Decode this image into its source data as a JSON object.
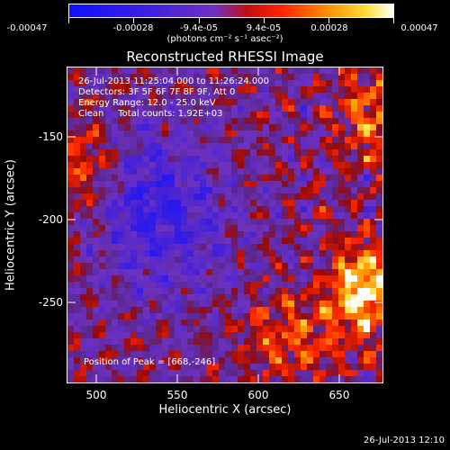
{
  "colorbar": {
    "tick_labels": [
      "-0.00047",
      "-0.00028",
      "-9.4e-05",
      "9.4e-05",
      "0.00028",
      "0.00047"
    ],
    "unit": "(photons cm⁻² s⁻¹ asec⁻²)",
    "colors": [
      "#1010ff",
      "#7030c0",
      "#ff2000",
      "#ff9000",
      "#ffffff"
    ]
  },
  "title": "Reconstructed RHESSI Image",
  "annotations": {
    "time_range": "26-Jul-2013 11:25:04.000 to 11:26:24.000",
    "detectors": "Detectors: 3F 5F 6F 7F 8F 9F, Att 0",
    "energy": "Energy Range: 12.0 - 25.0 keV",
    "clean": "Clean     Total counts: 1.92E+03",
    "peak": "Position of Peak = [668,-246]"
  },
  "axes": {
    "xlabel": "Heliocentric X (arcsec)",
    "ylabel": "Heliocentric Y (arcsec)",
    "x_ticks": [
      "500",
      "550",
      "600",
      "650"
    ],
    "y_ticks": [
      "-150",
      "-200",
      "-250"
    ]
  },
  "timestamp": "26-Jul-2013 12:10"
}
